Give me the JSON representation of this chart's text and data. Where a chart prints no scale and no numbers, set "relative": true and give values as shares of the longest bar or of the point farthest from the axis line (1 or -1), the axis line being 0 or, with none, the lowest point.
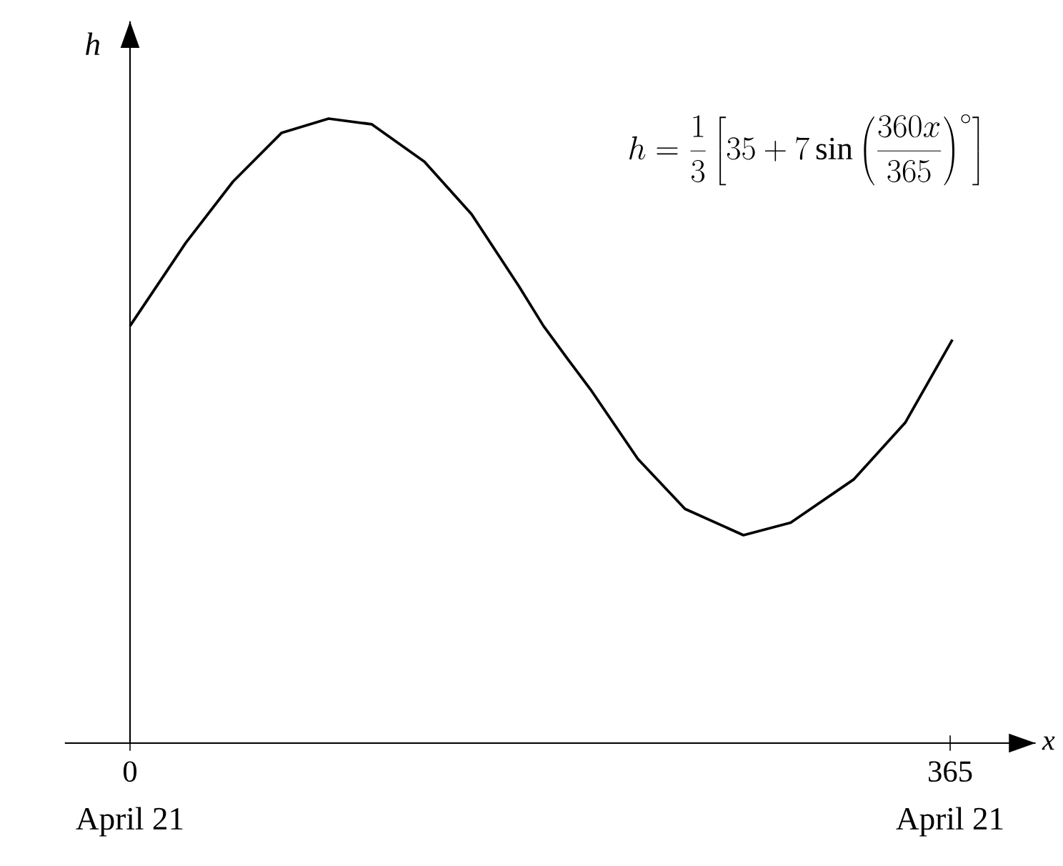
{
  "chart_data": {
    "type": "line",
    "relative": true,
    "xlabel": "x",
    "ylabel": "h",
    "x": [
      0,
      24.8,
      45.8,
      67.4,
      88.4,
      107.5,
      131,
      152,
      173,
      184,
      195,
      205,
      226,
      247,
      273,
      294,
      322,
      345,
      366
    ],
    "values": [
      0.668,
      0.801,
      0.899,
      0.977,
      1,
      0.991,
      0.931,
      0.847,
      0.732,
      0.668,
      0.614,
      0.566,
      0.455,
      0.375,
      0.333,
      0.353,
      0.422,
      0.513,
      0.646
    ],
    "color": "#000000",
    "marker": "none",
    "line_style": "solid",
    "xlim": [
      -29,
      403
    ],
    "xticks": [
      0,
      365
    ],
    "tick_labels": "x",
    "annotations": [
      "h=\\frac{1}{3}\\left[35+7\\sin\\left(\\frac{360x}{365}\\right)^{\\circ}\\right]",
      "April 21",
      "April 21"
    ]
  }
}
